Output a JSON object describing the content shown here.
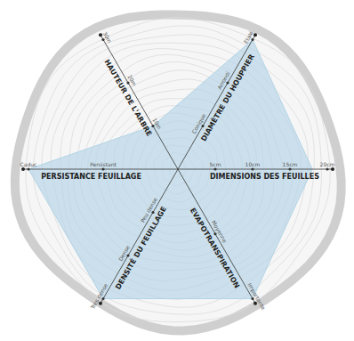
{
  "chart_data": {
    "type": "radar",
    "color": "#b3d4e6",
    "axes": [
      {
        "label": "HAUTEUR DE L'ARBRE",
        "ylim": [
          0,
          30
        ],
        "yticks": [
          {
            "value": 10,
            "label": "10m"
          },
          {
            "value": 20,
            "label": "20m"
          },
          {
            "value": 30,
            "label": "30m"
          }
        ],
        "value": 10
      },
      {
        "label": "DIAMÈTRE DU HOUPPIER",
        "ylim": [
          0,
          3
        ],
        "yticks": [
          {
            "value": 1,
            "label": "Conique"
          },
          {
            "value": 2,
            "label": "Arrondi"
          },
          {
            "value": 3,
            "label": "Etalé"
          }
        ],
        "value": 3
      },
      {
        "label": "DIMENSIONS DES FEUILLES",
        "ylim": [
          0,
          20
        ],
        "yticks": [
          {
            "value": 5,
            "label": "5cm"
          },
          {
            "value": 10,
            "label": "10cm"
          },
          {
            "value": 15,
            "label": "15cm"
          },
          {
            "value": 20,
            "label": "20cm"
          }
        ],
        "value": 18
      },
      {
        "label": "EVAPOTRANSPIRATION",
        "ylim": [
          0,
          2
        ],
        "yticks": [
          {
            "value": 1,
            "label": "Moyenne"
          },
          {
            "value": 2,
            "label": "Importante"
          }
        ],
        "value": 2
      },
      {
        "label": "DENSITÉ DU FEUILLAGE",
        "ylim": [
          0,
          3
        ],
        "yticks": [
          {
            "value": 1,
            "label": "Peu dense"
          },
          {
            "value": 2,
            "label": "Dense"
          },
          {
            "value": 3,
            "label": "Très dense"
          }
        ],
        "value": 3
      },
      {
        "label": "PERSISTANCE FEUILLAGE",
        "ylim": [
          0,
          2
        ],
        "yticks": [
          {
            "value": 1,
            "label": "Persistant"
          },
          {
            "value": 2,
            "label": "Caduc"
          }
        ],
        "value": 2
      }
    ]
  }
}
